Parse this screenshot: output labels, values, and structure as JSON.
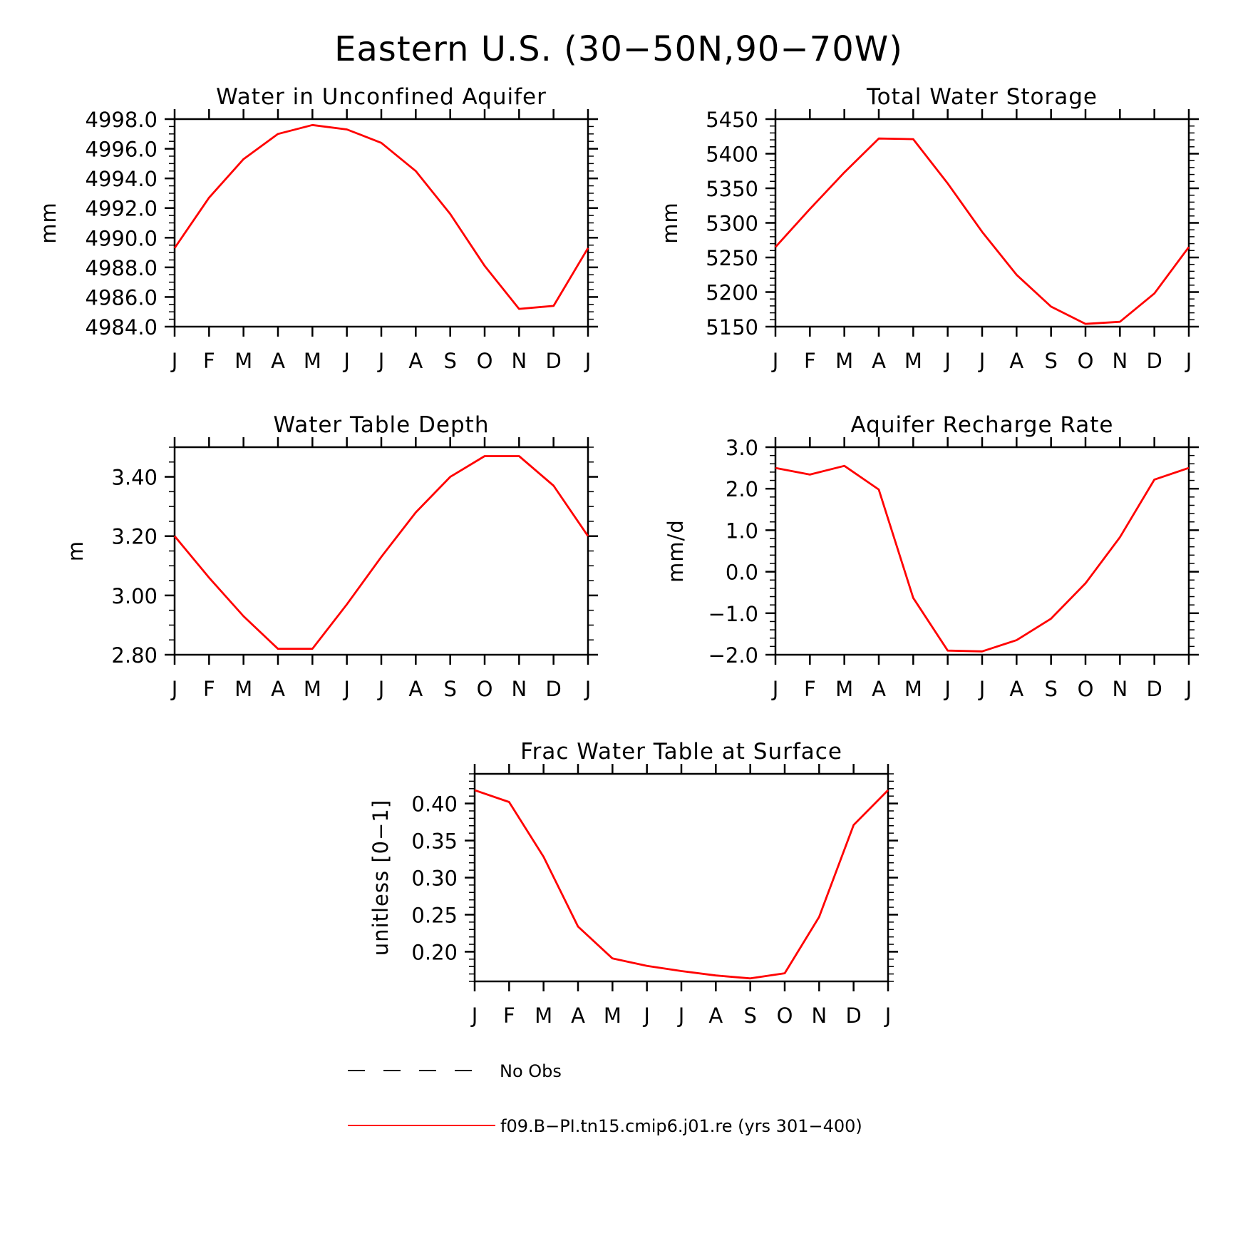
{
  "title": "Eastern U.S. (30−50N,90−70W)",
  "colors": {
    "series": "#ff0000",
    "axis": "#000000",
    "obs": "#000000"
  },
  "legend": {
    "obs_label": "No Obs",
    "model_label": "f09.B−PI.tn15.cmip6.j01.re (yrs 301−400)"
  },
  "chart_data": [
    {
      "type": "line",
      "title": "Water in Unconfined Aquifer",
      "ylabel": "mm",
      "x": [
        "J",
        "F",
        "M",
        "A",
        "M",
        "J",
        "J",
        "A",
        "S",
        "O",
        "N",
        "D",
        "J"
      ],
      "ylim": [
        4984.0,
        4998.0
      ],
      "yticks": [
        4984.0,
        4986.0,
        4988.0,
        4990.0,
        4992.0,
        4994.0,
        4996.0,
        4998.0
      ],
      "ytick_labels": [
        "4984.0",
        "4986.0",
        "4988.0",
        "4990.0",
        "4992.0",
        "4994.0",
        "4996.0",
        "4998.0"
      ],
      "yminor": 4,
      "series": [
        {
          "values": [
            4989.3,
            4992.7,
            4995.3,
            4997.0,
            4997.6,
            4997.3,
            4996.4,
            4994.5,
            4991.6,
            4988.1,
            4985.2,
            4985.4,
            4989.3
          ]
        }
      ]
    },
    {
      "type": "line",
      "title": "Total Water Storage",
      "ylabel": "mm",
      "x": [
        "J",
        "F",
        "M",
        "A",
        "M",
        "J",
        "J",
        "A",
        "S",
        "O",
        "N",
        "D",
        "J"
      ],
      "ylim": [
        5150,
        5450
      ],
      "yticks": [
        5150,
        5200,
        5250,
        5300,
        5350,
        5400,
        5450
      ],
      "ytick_labels": [
        "5150",
        "5200",
        "5250",
        "5300",
        "5350",
        "5400",
        "5450"
      ],
      "yminor": 5,
      "series": [
        {
          "values": [
            5265,
            5320,
            5373,
            5422,
            5421,
            5357,
            5287,
            5225,
            5179,
            5154,
            5157,
            5198,
            5265
          ]
        }
      ]
    },
    {
      "type": "line",
      "title": "Water Table Depth",
      "ylabel": "m",
      "x": [
        "J",
        "F",
        "M",
        "A",
        "M",
        "J",
        "J",
        "A",
        "S",
        "O",
        "N",
        "D",
        "J"
      ],
      "ylim": [
        2.8,
        3.5
      ],
      "yticks": [
        2.8,
        3.0,
        3.2,
        3.4
      ],
      "ytick_labels": [
        "2.80",
        "3.00",
        "3.20",
        "3.40"
      ],
      "yminor": 4,
      "series": [
        {
          "values": [
            3.2,
            3.06,
            2.93,
            2.82,
            2.82,
            2.97,
            3.13,
            3.28,
            3.4,
            3.47,
            3.47,
            3.37,
            3.2
          ]
        }
      ]
    },
    {
      "type": "line",
      "title": "Aquifer Recharge Rate",
      "ylabel": "mm/d",
      "x": [
        "J",
        "F",
        "M",
        "A",
        "M",
        "J",
        "J",
        "A",
        "S",
        "O",
        "N",
        "D",
        "J"
      ],
      "ylim": [
        -2.0,
        3.0
      ],
      "yticks": [
        -2.0,
        -1.0,
        0.0,
        1.0,
        2.0,
        3.0
      ],
      "ytick_labels": [
        "−2.0",
        "−1.0",
        "0.0",
        "1.0",
        "2.0",
        "3.0"
      ],
      "yminor": 5,
      "series": [
        {
          "values": [
            2.5,
            2.34,
            2.55,
            1.98,
            -0.63,
            -1.9,
            -1.92,
            -1.65,
            -1.13,
            -0.28,
            0.83,
            2.22,
            2.5
          ]
        }
      ]
    },
    {
      "type": "line",
      "title": "Frac Water Table at Surface",
      "ylabel": "unitless [0−1]",
      "x": [
        "J",
        "F",
        "M",
        "A",
        "M",
        "J",
        "J",
        "A",
        "S",
        "O",
        "N",
        "D",
        "J"
      ],
      "ylim": [
        0.16,
        0.44
      ],
      "yticks": [
        0.2,
        0.25,
        0.3,
        0.35,
        0.4
      ],
      "ytick_labels": [
        "0.20",
        "0.25",
        "0.30",
        "0.35",
        "0.40"
      ],
      "yminor": 5,
      "series": [
        {
          "values": [
            0.418,
            0.402,
            0.328,
            0.234,
            0.191,
            0.181,
            0.174,
            0.168,
            0.164,
            0.171,
            0.247,
            0.371,
            0.418
          ]
        }
      ]
    }
  ]
}
